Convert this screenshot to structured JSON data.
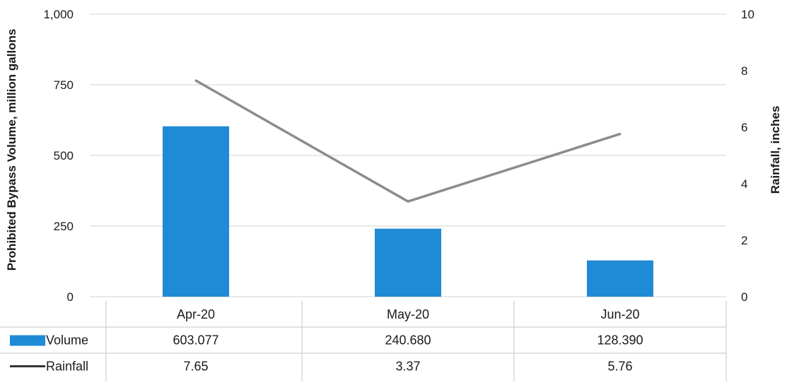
{
  "colors": {
    "bar": "#1f8ad6",
    "line": "#8c8c8c",
    "grid": "#d9d9d9",
    "table_border": "#cfcfcf",
    "legend_line": "#333333"
  },
  "chart_data": {
    "type": "bar",
    "categories": [
      "Apr-20",
      "May-20",
      "Jun-20"
    ],
    "series": [
      {
        "name": "Volume",
        "type": "bar",
        "axis": "left",
        "values": [
          603.077,
          240.68,
          128.39
        ],
        "table_values": [
          "603.077",
          "240.680",
          "128.390"
        ]
      },
      {
        "name": "Rainfall",
        "type": "line",
        "axis": "right",
        "values": [
          7.65,
          3.37,
          5.76
        ],
        "table_values": [
          "7.65",
          "3.37",
          "5.76"
        ]
      }
    ],
    "ylabel": "Prohibited Bypass Volume, million gallons",
    "y2label": "Rainfall, inches",
    "ylim": [
      0,
      1000
    ],
    "y2lim": [
      0,
      10
    ],
    "yticks": [
      "0",
      "250",
      "500",
      "750",
      "1,000"
    ],
    "y2ticks": [
      "0",
      "2",
      "4",
      "6",
      "8",
      "10"
    ],
    "grid": true,
    "legend": "data table below chart"
  }
}
